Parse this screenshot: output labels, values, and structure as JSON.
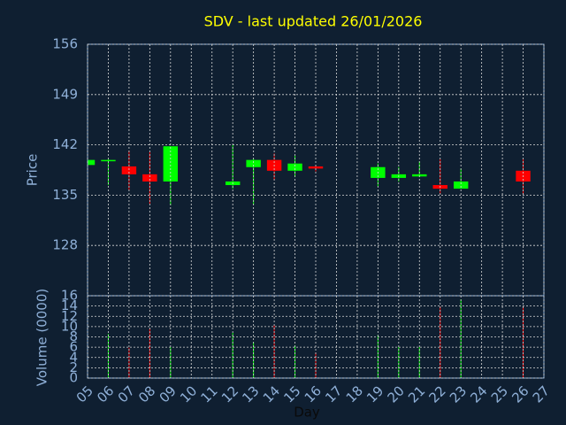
{
  "chart_data": {
    "type": "candlestick",
    "title": "SDV - last updated 26/01/2026",
    "xlabel": "Day",
    "ylabel": "Price",
    "y2label": "Volume (0000)",
    "x": [
      5,
      6,
      7,
      8,
      9,
      12,
      13,
      14,
      15,
      16,
      19,
      20,
      21,
      22,
      23,
      26
    ],
    "open": [
      139.2,
      139.9,
      139.0,
      137.9,
      136.9,
      136.4,
      138.9,
      139.9,
      138.4,
      139.0,
      137.4,
      137.4,
      137.6,
      136.4,
      135.9,
      138.4
    ],
    "high": [
      139.9,
      140.0,
      141.2,
      141.0,
      141.8,
      142.0,
      140.1,
      140.8,
      140.5,
      139.2,
      139.4,
      138.9,
      139.7,
      140.0,
      138.7,
      140.0
    ],
    "low": [
      139.2,
      136.4,
      135.7,
      133.8,
      133.6,
      135.9,
      133.7,
      137.1,
      137.5,
      138.3,
      136.2,
      136.9,
      137.5,
      135.2,
      135.9,
      135.1
    ],
    "close": [
      139.9,
      139.9,
      137.9,
      136.9,
      141.8,
      136.9,
      139.9,
      138.4,
      139.4,
      138.7,
      138.9,
      137.9,
      137.9,
      135.9,
      136.9,
      136.9
    ],
    "volume": [
      null,
      8.6,
      5.9,
      9.6,
      6.0,
      8.8,
      7.0,
      10.3,
      6.4,
      5.0,
      8.4,
      6.0,
      6.0,
      13.9,
      15.3,
      13.9
    ],
    "up_color": "#00ff00",
    "down_color": "#ff0000",
    "title_color": "#ffff00",
    "xlim": [
      5,
      27
    ],
    "xticks": [
      {
        "value": 5,
        "label": "05"
      },
      {
        "value": 6,
        "label": "06"
      },
      {
        "value": 7,
        "label": "07"
      },
      {
        "value": 8,
        "label": "08"
      },
      {
        "value": 9,
        "label": "09"
      },
      10,
      11,
      12,
      13,
      14,
      15,
      16,
      17,
      18,
      19,
      20,
      21,
      22,
      23,
      24,
      25,
      26,
      27
    ],
    "ylim": [
      121,
      156
    ],
    "yticks": [
      128,
      135,
      142,
      149,
      156
    ],
    "y2lim": [
      0,
      16
    ],
    "y2ticks": [
      0,
      2,
      4,
      6,
      8,
      10,
      12,
      14,
      16
    ],
    "grid": true
  }
}
